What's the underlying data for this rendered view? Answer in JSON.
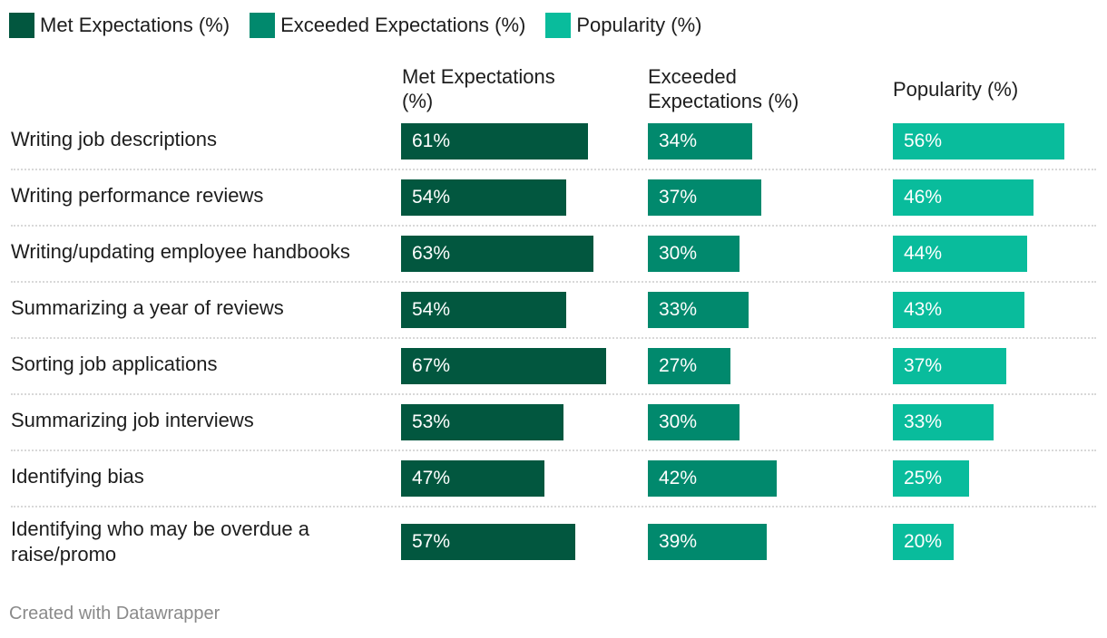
{
  "legend": [
    {
      "label": "Met Expectations (%)",
      "color": "#02573f"
    },
    {
      "label": "Exceeded Expectations (%)",
      "color": "#01896d"
    },
    {
      "label": "Popularity (%)",
      "color": "#09bc9c"
    }
  ],
  "columns": [
    "Met Expectations (%)",
    "Exceeded Expectations (%)",
    "Popularity (%)"
  ],
  "chart_data": {
    "type": "bar",
    "categories": [
      "Writing job descriptions",
      "Writing performance reviews",
      "Writing/updating employee handbooks",
      "Summarizing a year of reviews",
      "Sorting job applications",
      "Summarizing job interviews",
      "Identifying bias",
      "Identifying who may be overdue a raise/promo"
    ],
    "series": [
      {
        "name": "Met Expectations (%)",
        "values": [
          61,
          54,
          63,
          54,
          67,
          53,
          47,
          57
        ],
        "color": "#02573f"
      },
      {
        "name": "Exceeded Expectations (%)",
        "values": [
          34,
          37,
          30,
          33,
          27,
          30,
          42,
          39
        ],
        "color": "#01896d"
      },
      {
        "name": "Popularity (%)",
        "values": [
          56,
          46,
          44,
          43,
          37,
          33,
          25,
          20
        ],
        "color": "#09bc9c"
      }
    ],
    "value_suffix": "%",
    "title": "",
    "xlabel": "",
    "ylabel": ""
  },
  "footer": "Created with Datawrapper"
}
